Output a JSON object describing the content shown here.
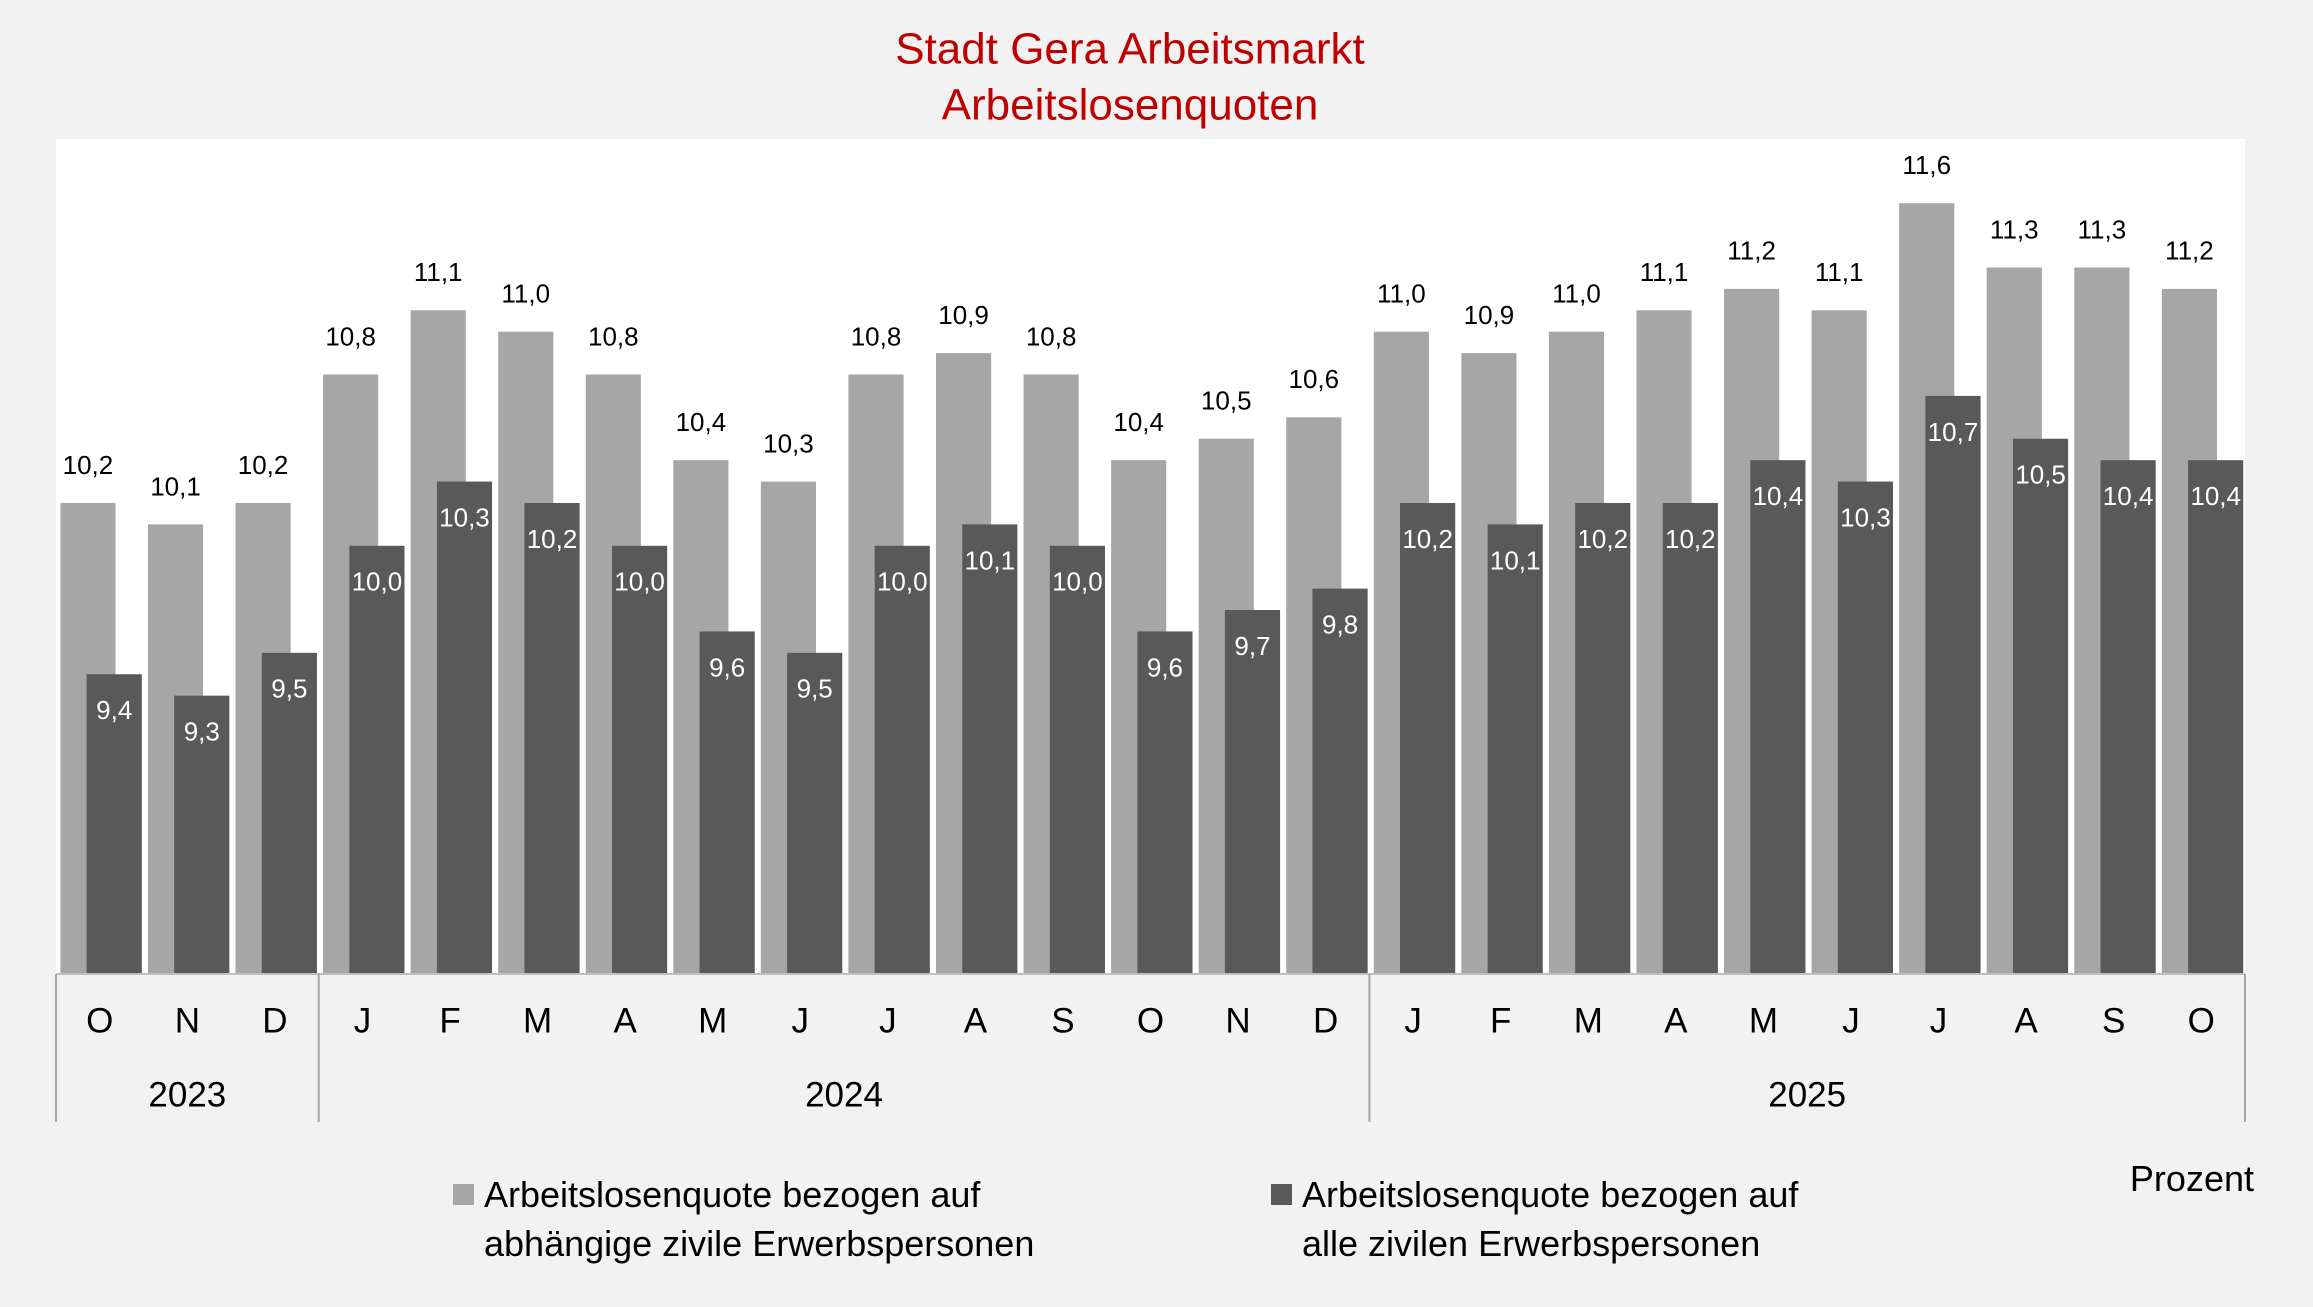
{
  "chart_data": {
    "type": "bar",
    "title": "Stadt Gera Arbeitsmarkt",
    "subtitle": "Arbeitslosenquoten",
    "unit_label": "Prozent",
    "categories": [
      "O",
      "N",
      "D",
      "J",
      "F",
      "M",
      "A",
      "M",
      "J",
      "J",
      "A",
      "S",
      "O",
      "N",
      "D",
      "J",
      "F",
      "M",
      "A",
      "M",
      "J",
      "J",
      "A",
      "S",
      "O"
    ],
    "year_groups": [
      {
        "label": "2023",
        "count": 3
      },
      {
        "label": "2024",
        "count": 12
      },
      {
        "label": "2025",
        "count": 10
      }
    ],
    "ylim": [
      8,
      11.9
    ],
    "series": [
      {
        "name": "Arbeitslosenquote bezogen auf\nabhängige zivile Erwerbspersonen",
        "color": "#a6a6a6",
        "values": [
          10.2,
          10.1,
          10.2,
          10.8,
          11.1,
          11.0,
          10.8,
          10.4,
          10.3,
          10.8,
          10.9,
          10.8,
          10.4,
          10.5,
          10.6,
          11.0,
          10.9,
          11.0,
          11.1,
          11.2,
          11.1,
          11.6,
          11.3,
          11.3,
          11.2
        ],
        "value_labels": [
          "10,2",
          "10,1",
          "10,2",
          "10,8",
          "11,1",
          "11,0",
          "10,8",
          "10,4",
          "10,3",
          "10,8",
          "10,9",
          "10,8",
          "10,4",
          "10,5",
          "10,6",
          "11,0",
          "10,9",
          "11,0",
          "11,1",
          "11,2",
          "11,1",
          "11,6",
          "11,3",
          "11,3",
          "11,2"
        ]
      },
      {
        "name": "Arbeitslosenquote bezogen auf\nalle zivilen Erwerbspersonen",
        "color": "#595959",
        "values": [
          9.4,
          9.3,
          9.5,
          10.0,
          10.3,
          10.2,
          10.0,
          9.6,
          9.5,
          10.0,
          10.1,
          10.0,
          9.6,
          9.7,
          9.8,
          10.2,
          10.1,
          10.2,
          10.2,
          10.4,
          10.3,
          10.7,
          10.5,
          10.4,
          10.4
        ],
        "value_labels": [
          "9,4",
          "9,3",
          "9,5",
          "10,0",
          "10,3",
          "10,2",
          "10,0",
          "9,6",
          "9,5",
          "10,0",
          "10,1",
          "10,0",
          "9,6",
          "9,7",
          "9,8",
          "10,2",
          "10,1",
          "10,2",
          "10,2",
          "10,4",
          "10,3",
          "10,7",
          "10,5",
          "10,4",
          "10,4"
        ]
      }
    ]
  }
}
